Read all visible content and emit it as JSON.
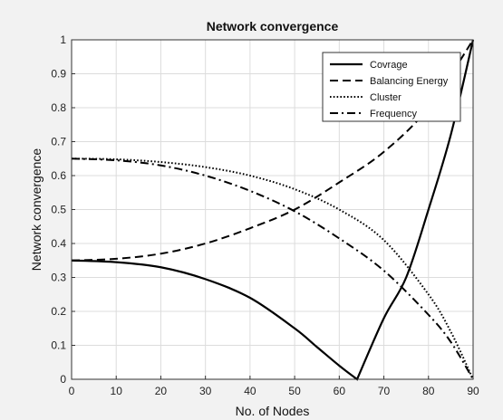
{
  "chart_data": {
    "type": "line",
    "title": "Network convergence",
    "xlabel": "No. of Nodes",
    "ylabel": "Network convergence",
    "xlim": [
      0,
      90
    ],
    "ylim": [
      0,
      1
    ],
    "xticks": [
      0,
      10,
      20,
      30,
      40,
      50,
      60,
      70,
      80,
      90
    ],
    "yticks": [
      0,
      0.1,
      0.2,
      0.3,
      0.4,
      0.5,
      0.6,
      0.7,
      0.8,
      0.9,
      1
    ],
    "ytick_labels": [
      "0",
      "0.1",
      "0.2",
      "0.3",
      "0.4",
      "0.5",
      "0.6",
      "0.7",
      "0.8",
      "0.9",
      "1"
    ],
    "grid": true,
    "legend_position": "top-right",
    "series": [
      {
        "name": "Covrage",
        "style": "solid",
        "color": "#000000",
        "x": [
          0,
          10,
          20,
          30,
          40,
          50,
          55,
          60,
          64,
          70,
          75,
          80,
          85,
          90
        ],
        "y": [
          0.35,
          0.345,
          0.33,
          0.295,
          0.24,
          0.15,
          0.095,
          0.04,
          0.0,
          0.18,
          0.3,
          0.5,
          0.72,
          1.0
        ]
      },
      {
        "name": "Balancing Energy",
        "style": "dashed",
        "color": "#000000",
        "x": [
          0,
          10,
          20,
          30,
          40,
          50,
          60,
          70,
          80,
          90
        ],
        "y": [
          0.35,
          0.355,
          0.37,
          0.4,
          0.445,
          0.5,
          0.58,
          0.67,
          0.8,
          1.0
        ]
      },
      {
        "name": "Cluster",
        "style": "dotted",
        "color": "#000000",
        "x": [
          0,
          10,
          20,
          30,
          40,
          50,
          60,
          70,
          80,
          85,
          90
        ],
        "y": [
          0.65,
          0.648,
          0.64,
          0.625,
          0.6,
          0.56,
          0.5,
          0.41,
          0.25,
          0.14,
          0.0
        ]
      },
      {
        "name": "Frequency",
        "style": "dashdot",
        "color": "#000000",
        "x": [
          0,
          10,
          20,
          30,
          40,
          50,
          60,
          70,
          80,
          85,
          90
        ],
        "y": [
          0.65,
          0.645,
          0.63,
          0.6,
          0.555,
          0.495,
          0.415,
          0.32,
          0.19,
          0.11,
          0.0
        ]
      }
    ]
  }
}
